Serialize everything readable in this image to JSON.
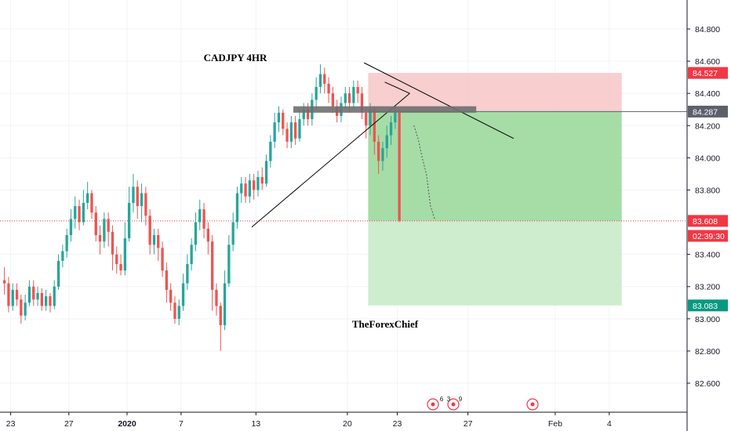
{
  "chart_data": {
    "type": "candlestick",
    "symbol_note": "CADJPY 4HR",
    "watermark": "TheForexChief",
    "y_axis": {
      "ticks": [
        "84.800",
        "84.600",
        "84.400",
        "84.200",
        "84.000",
        "83.800",
        "83.400",
        "83.200",
        "83.000",
        "82.800",
        "82.600"
      ],
      "tick_values": [
        84.8,
        84.6,
        84.4,
        84.2,
        84.0,
        83.8,
        83.4,
        83.2,
        83.0,
        82.8,
        82.6
      ],
      "range": [
        82.42,
        84.98
      ]
    },
    "x_axis": {
      "ticks": [
        "23",
        "27",
        "2020",
        "7",
        "13",
        "20",
        "23",
        "27",
        "Feb",
        "4"
      ],
      "tick_bar_index": [
        2,
        16,
        30,
        43,
        61,
        83,
        95,
        112,
        133,
        146
      ]
    },
    "price_tags": [
      {
        "label": "84.527",
        "value": 84.527,
        "color": "#f23645"
      },
      {
        "label": "84.287",
        "value": 84.287,
        "color": "#5d606b"
      },
      {
        "label": "83.608",
        "value": 83.608,
        "color": "#f23645"
      },
      {
        "label": "02:39:30",
        "value": 83.515,
        "color": "#f23645",
        "countdown": true
      },
      {
        "label": "83.083",
        "value": 83.083,
        "color": "#089981"
      }
    ],
    "position": {
      "entry": 84.287,
      "stop": 84.527,
      "target": 83.083,
      "start_bar": 88,
      "end_bar": 149,
      "current": 83.608
    },
    "current_price": 83.608,
    "events": {
      "labels": [
        "6",
        "3",
        "9"
      ]
    },
    "colors": {
      "up": "#26a69a",
      "down": "#ef5350",
      "stop_zone": "#f7c6c7",
      "target_zone": "#a6dca6",
      "target_zone_light": "#ceecce"
    },
    "ohlc": [
      [
        83.24,
        83.22,
        83.32,
        83.15
      ],
      [
        83.22,
        83.08,
        83.26,
        83.04
      ],
      [
        83.08,
        83.18,
        83.22,
        83.05
      ],
      [
        83.18,
        83.12,
        83.22,
        83.08
      ],
      [
        83.12,
        83.02,
        83.15,
        82.97
      ],
      [
        83.02,
        83.1,
        83.15,
        82.99
      ],
      [
        83.1,
        83.2,
        83.24,
        83.08
      ],
      [
        83.2,
        83.12,
        83.24,
        83.08
      ],
      [
        83.12,
        83.16,
        83.2,
        83.08
      ],
      [
        83.16,
        83.08,
        83.19,
        83.05
      ],
      [
        83.08,
        83.14,
        83.18,
        83.05
      ],
      [
        83.14,
        83.08,
        83.16,
        83.04
      ],
      [
        83.08,
        83.2,
        83.24,
        83.06
      ],
      [
        83.2,
        83.36,
        83.4,
        83.18
      ],
      [
        83.36,
        83.42,
        83.46,
        83.32
      ],
      [
        83.42,
        83.52,
        83.56,
        83.38
      ],
      [
        83.52,
        83.62,
        83.68,
        83.48
      ],
      [
        83.62,
        83.7,
        83.76,
        83.56
      ],
      [
        83.7,
        83.6,
        83.74,
        83.55
      ],
      [
        83.6,
        83.72,
        83.8,
        83.58
      ],
      [
        83.72,
        83.78,
        83.85,
        83.68
      ],
      [
        83.78,
        83.66,
        83.8,
        83.62
      ],
      [
        83.66,
        83.52,
        83.7,
        83.48
      ],
      [
        83.52,
        83.48,
        83.58,
        83.4
      ],
      [
        83.48,
        83.62,
        83.66,
        83.44
      ],
      [
        83.62,
        83.54,
        83.66,
        83.45
      ],
      [
        83.54,
        83.4,
        83.58,
        83.3
      ],
      [
        83.4,
        83.34,
        83.45,
        83.28
      ],
      [
        83.34,
        83.3,
        83.4,
        83.27
      ],
      [
        83.3,
        83.5,
        83.6,
        83.27
      ],
      [
        83.5,
        83.72,
        83.82,
        83.48
      ],
      [
        83.72,
        83.82,
        83.9,
        83.66
      ],
      [
        83.82,
        83.7,
        83.86,
        83.62
      ],
      [
        83.7,
        83.78,
        83.84,
        83.6
      ],
      [
        83.78,
        83.64,
        83.82,
        83.58
      ],
      [
        83.64,
        83.46,
        83.68,
        83.4
      ],
      [
        83.46,
        83.52,
        83.56,
        83.4
      ],
      [
        83.52,
        83.44,
        83.56,
        83.36
      ],
      [
        83.44,
        83.3,
        83.48,
        83.26
      ],
      [
        83.3,
        83.18,
        83.35,
        83.1
      ],
      [
        83.18,
        83.1,
        83.22,
        83.05
      ],
      [
        83.1,
        83.0,
        83.14,
        82.97
      ],
      [
        83.0,
        83.08,
        83.12,
        82.96
      ],
      [
        83.08,
        83.22,
        83.28,
        83.05
      ],
      [
        83.22,
        83.34,
        83.4,
        83.18
      ],
      [
        83.34,
        83.46,
        83.5,
        83.3
      ],
      [
        83.46,
        83.6,
        83.66,
        83.42
      ],
      [
        83.6,
        83.68,
        83.74,
        83.55
      ],
      [
        83.68,
        83.56,
        83.72,
        83.5
      ],
      [
        83.56,
        83.48,
        83.6,
        83.4
      ],
      [
        83.48,
        83.18,
        83.52,
        83.05
      ],
      [
        83.18,
        83.08,
        83.22,
        83.02
      ],
      [
        83.08,
        82.96,
        83.1,
        82.8
      ],
      [
        82.96,
        83.22,
        83.3,
        82.93
      ],
      [
        83.22,
        83.46,
        83.52,
        83.2
      ],
      [
        83.46,
        83.6,
        83.66,
        83.42
      ],
      [
        83.6,
        83.78,
        83.82,
        83.56
      ],
      [
        83.78,
        83.84,
        83.88,
        83.72
      ],
      [
        83.84,
        83.76,
        83.88,
        83.72
      ],
      [
        83.76,
        83.86,
        83.9,
        83.72
      ],
      [
        83.86,
        83.8,
        83.9,
        83.74
      ],
      [
        83.8,
        83.88,
        83.92,
        83.76
      ],
      [
        83.88,
        83.84,
        83.94,
        83.8
      ],
      [
        83.84,
        83.98,
        84.02,
        83.82
      ],
      [
        83.98,
        84.1,
        84.14,
        83.94
      ],
      [
        84.1,
        84.22,
        84.28,
        84.06
      ],
      [
        84.22,
        84.28,
        84.32,
        84.16
      ],
      [
        84.28,
        84.18,
        84.3,
        84.14
      ],
      [
        84.18,
        84.1,
        84.22,
        84.06
      ],
      [
        84.1,
        84.22,
        84.26,
        84.06
      ],
      [
        84.22,
        84.12,
        84.26,
        84.08
      ],
      [
        84.12,
        84.24,
        84.3,
        84.1
      ],
      [
        84.24,
        84.3,
        84.34,
        84.2
      ],
      [
        84.3,
        84.24,
        84.34,
        84.2
      ],
      [
        84.24,
        84.36,
        84.4,
        84.2
      ],
      [
        84.36,
        84.44,
        84.5,
        84.3
      ],
      [
        84.44,
        84.52,
        84.58,
        84.4
      ],
      [
        84.52,
        84.46,
        84.56,
        84.4
      ],
      [
        84.46,
        84.4,
        84.5,
        84.34
      ],
      [
        84.4,
        84.32,
        84.44,
        84.28
      ],
      [
        84.32,
        84.26,
        84.36,
        84.22
      ],
      [
        84.26,
        84.34,
        84.38,
        84.22
      ],
      [
        84.34,
        84.4,
        84.44,
        84.3
      ],
      [
        84.4,
        84.34,
        84.44,
        84.28
      ],
      [
        84.34,
        84.44,
        84.48,
        84.3
      ],
      [
        84.44,
        84.4,
        84.48,
        84.34
      ],
      [
        84.4,
        84.28,
        84.44,
        84.24
      ],
      [
        84.28,
        84.2,
        84.32,
        84.12
      ],
      [
        84.2,
        84.3,
        84.34,
        84.14
      ],
      [
        84.3,
        84.1,
        84.32,
        84.02
      ],
      [
        84.1,
        83.98,
        84.14,
        83.9
      ],
      [
        83.98,
        84.06,
        84.1,
        83.92
      ],
      [
        84.06,
        84.14,
        84.2,
        84.0
      ],
      [
        84.14,
        84.22,
        84.26,
        84.08
      ],
      [
        84.22,
        84.28,
        84.32,
        84.18
      ],
      [
        84.28,
        83.61,
        84.3,
        83.6
      ]
    ]
  }
}
